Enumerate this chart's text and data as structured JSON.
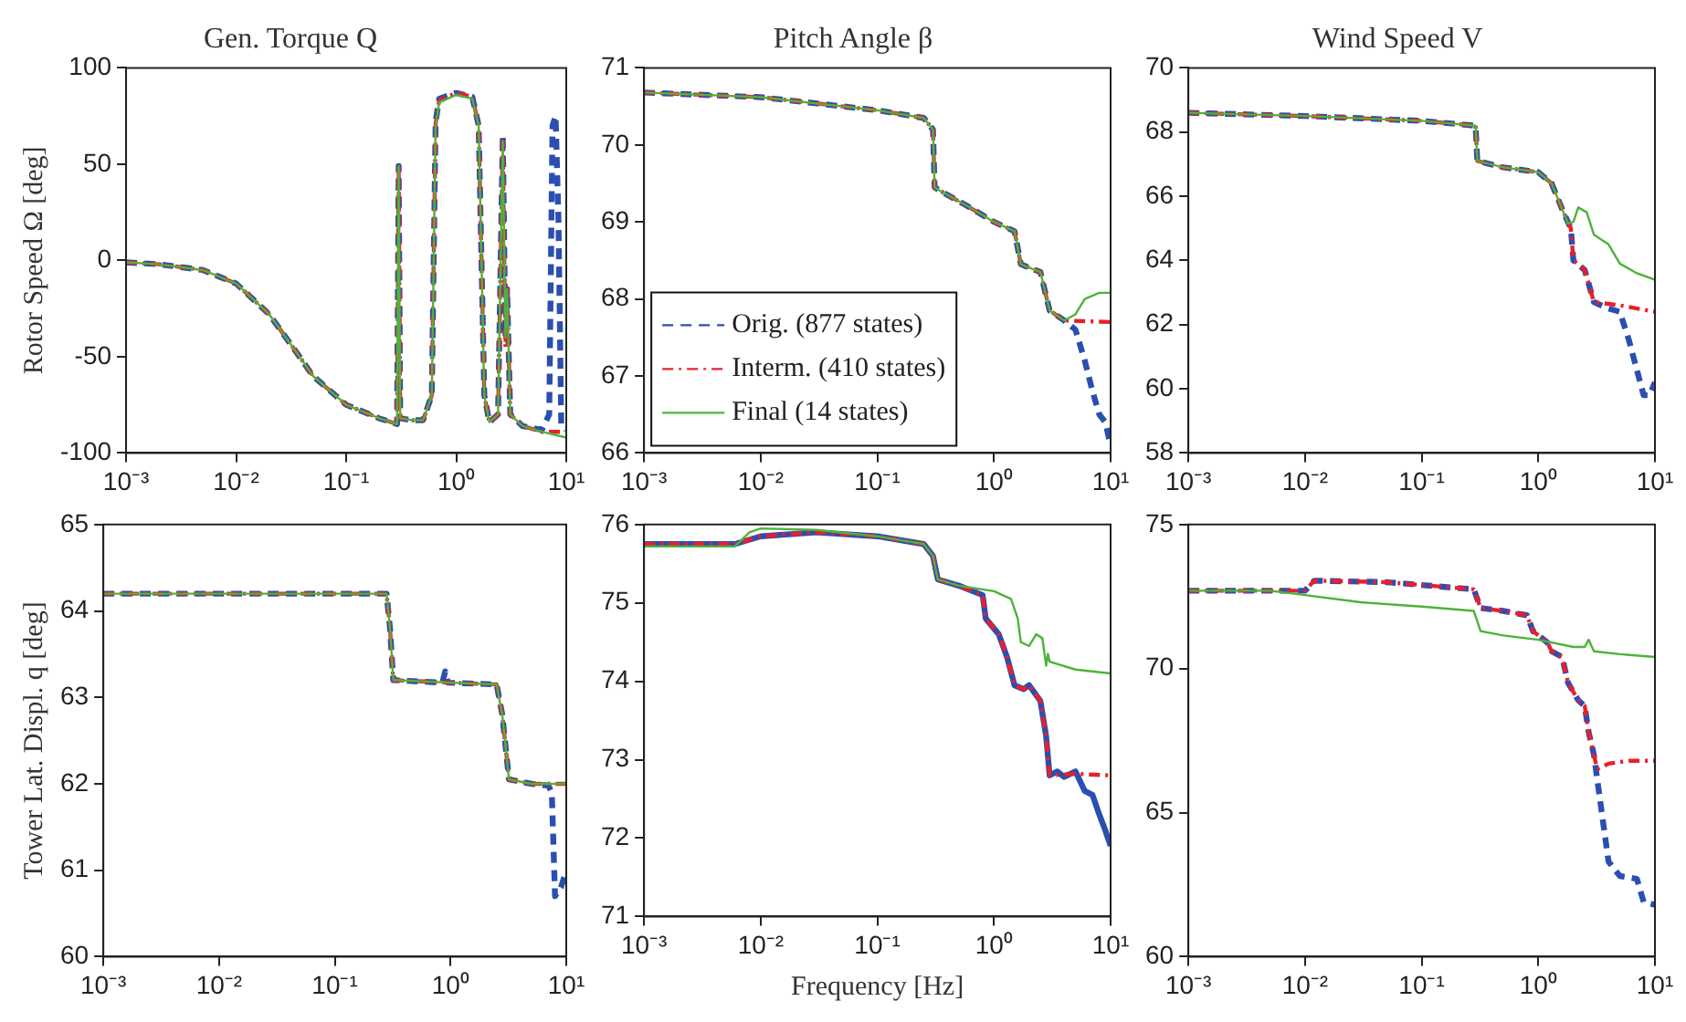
{
  "chart_data": [
    {
      "type": "line",
      "title": "Gen. Torque Q",
      "ylabel": "Rotor Speed Ω [deg]",
      "log": "x",
      "grid": false,
      "legend": false,
      "xlim": [
        0.001,
        10
      ],
      "xticks": [
        {
          "value": 0.001,
          "label": "10⁻³"
        },
        {
          "value": 0.01,
          "label": "10⁻²"
        },
        {
          "value": 0.1,
          "label": "10⁻¹"
        },
        {
          "value": 1,
          "label": "10⁰"
        },
        {
          "value": 10,
          "label": "10¹"
        }
      ],
      "ylim": [
        -100,
        100
      ],
      "yticks": [
        -100,
        -50,
        0,
        50,
        100
      ],
      "series": [
        {
          "color": "#2b4fb0",
          "line_style": "dashed",
          "x": [
            0.001,
            0.002,
            0.005,
            0.01,
            0.02,
            0.03,
            0.05,
            0.1,
            0.2,
            0.29,
            0.3,
            0.31,
            0.4,
            0.5,
            0.6,
            0.65,
            0.7,
            1,
            1.4,
            1.6,
            1.8,
            2,
            2.4,
            2.65,
            2.8,
            2.9,
            3.1,
            4,
            6,
            7,
            7.5,
            8,
            8.5,
            9,
            10
          ],
          "values": [
            -1,
            -2,
            -5,
            -12,
            -28,
            -42,
            -60,
            -75,
            -82,
            -85,
            49,
            -82,
            -83,
            -83,
            -70,
            72,
            84,
            87,
            85,
            70,
            -70,
            -84,
            -80,
            65,
            -40,
            -15,
            -80,
            -86,
            -88,
            -80,
            70,
            75,
            20,
            -85,
            -88
          ]
        },
        {
          "color": "#e8202a",
          "line_style": "dotted",
          "x": [
            0.001,
            0.002,
            0.005,
            0.01,
            0.02,
            0.03,
            0.05,
            0.1,
            0.2,
            0.29,
            0.3,
            0.31,
            0.4,
            0.5,
            0.6,
            0.65,
            0.7,
            1,
            1.4,
            1.6,
            1.8,
            2,
            2.4,
            2.65,
            2.8,
            2.9,
            3.1,
            4,
            6,
            10
          ],
          "values": [
            -1,
            -2,
            -5,
            -12,
            -28,
            -42,
            -60,
            -75,
            -82,
            -85,
            49,
            -82,
            -83,
            -83,
            -70,
            71,
            83,
            87,
            85,
            70,
            -70,
            -84,
            -80,
            62,
            -45,
            -15,
            -80,
            -86,
            -89,
            -89
          ]
        },
        {
          "color": "#4cb33a",
          "line_style": "solid",
          "x": [
            0.001,
            0.002,
            0.005,
            0.01,
            0.02,
            0.03,
            0.05,
            0.1,
            0.2,
            0.29,
            0.3,
            0.31,
            0.4,
            0.5,
            0.6,
            0.65,
            0.7,
            1,
            1.4,
            1.6,
            1.8,
            2,
            2.4,
            2.65,
            2.8,
            2.9,
            3.1,
            4,
            6,
            10
          ],
          "values": [
            -1,
            -2,
            -5,
            -12,
            -28,
            -42,
            -60,
            -75,
            -82,
            -85,
            49,
            -82,
            -83,
            -83,
            -70,
            70,
            82,
            86,
            84,
            70,
            -70,
            -84,
            -80,
            62,
            -40,
            -15,
            -80,
            -86,
            -89,
            -92
          ]
        }
      ]
    },
    {
      "type": "line",
      "title": "Pitch Angle β",
      "log": "x",
      "grid": false,
      "legend": "bottom left",
      "xlim": [
        0.001,
        10
      ],
      "xticks": [
        {
          "value": 0.001,
          "label": "10⁻³"
        },
        {
          "value": 0.01,
          "label": "10⁻²"
        },
        {
          "value": 0.1,
          "label": "10⁻¹"
        },
        {
          "value": 1,
          "label": "10⁰"
        },
        {
          "value": 10,
          "label": "10¹"
        }
      ],
      "ylim": [
        66,
        71
      ],
      "yticks": [
        66,
        67,
        68,
        69,
        70,
        71
      ],
      "series": [
        {
          "name": "Orig. (877 states)",
          "color": "#2b4fb0",
          "line_style": "dashed",
          "x": [
            0.001,
            0.01,
            0.1,
            0.25,
            0.3,
            0.31,
            0.35,
            0.6,
            1,
            1.5,
            1.7,
            2.5,
            3,
            4,
            5,
            6,
            7,
            8,
            9,
            10
          ],
          "values": [
            70.68,
            70.62,
            70.45,
            70.35,
            70.2,
            69.45,
            69.4,
            69.2,
            69.0,
            68.88,
            68.45,
            68.35,
            67.85,
            67.72,
            67.6,
            67.2,
            66.8,
            66.5,
            66.4,
            66.1
          ]
        },
        {
          "name": "Interm. (410 states)",
          "color": "#e8202a",
          "line_style": "dotted",
          "x": [
            0.001,
            0.01,
            0.1,
            0.25,
            0.3,
            0.31,
            0.35,
            0.6,
            1,
            1.5,
            1.7,
            2.5,
            3,
            4,
            10
          ],
          "values": [
            70.68,
            70.62,
            70.45,
            70.35,
            70.2,
            69.45,
            69.4,
            69.2,
            69.0,
            68.88,
            68.45,
            68.35,
            67.85,
            67.72,
            67.7
          ]
        },
        {
          "name": "Final (14 states)",
          "color": "#4cb33a",
          "line_style": "solid",
          "x": [
            0.001,
            0.01,
            0.1,
            0.25,
            0.3,
            0.31,
            0.35,
            0.6,
            1,
            1.5,
            1.7,
            2.5,
            3,
            4,
            5,
            6,
            8,
            10
          ],
          "values": [
            70.68,
            70.62,
            70.45,
            70.35,
            70.2,
            69.45,
            69.4,
            69.2,
            69.0,
            68.88,
            68.45,
            68.35,
            67.85,
            67.72,
            67.8,
            68.0,
            68.08,
            68.08
          ]
        }
      ]
    },
    {
      "type": "line",
      "title": "Wind Speed V",
      "log": "x",
      "grid": false,
      "legend": false,
      "xlim": [
        0.001,
        10
      ],
      "xticks": [
        {
          "value": 0.001,
          "label": "10⁻³"
        },
        {
          "value": 0.01,
          "label": "10⁻²"
        },
        {
          "value": 0.1,
          "label": "10⁻¹"
        },
        {
          "value": 1,
          "label": "10⁰"
        },
        {
          "value": 10,
          "label": "10¹"
        }
      ],
      "ylim": [
        58,
        70
      ],
      "yticks": [
        58,
        60,
        62,
        64,
        66,
        68,
        70
      ],
      "series": [
        {
          "color": "#2b4fb0",
          "line_style": "dashed",
          "x": [
            0.001,
            0.01,
            0.1,
            0.29,
            0.3,
            0.5,
            1,
            1.3,
            1.6,
            1.9,
            2,
            2.5,
            3,
            4,
            5,
            6,
            8,
            9,
            10
          ],
          "values": [
            68.6,
            68.5,
            68.35,
            68.2,
            67.1,
            66.9,
            66.75,
            66.4,
            65.6,
            65.0,
            64.0,
            63.7,
            62.7,
            62.5,
            62.4,
            61.5,
            59.8,
            59.8,
            60.2
          ]
        },
        {
          "color": "#e8202a",
          "line_style": "dotted",
          "x": [
            0.001,
            0.01,
            0.1,
            0.29,
            0.3,
            0.5,
            1,
            1.3,
            1.6,
            1.9,
            2,
            2.5,
            3,
            5,
            10
          ],
          "values": [
            68.6,
            68.5,
            68.35,
            68.2,
            67.1,
            66.9,
            66.75,
            66.4,
            65.6,
            65.0,
            64.0,
            63.7,
            62.7,
            62.6,
            62.4
          ]
        },
        {
          "color": "#4cb33a",
          "line_style": "solid",
          "x": [
            0.001,
            0.01,
            0.1,
            0.29,
            0.3,
            0.5,
            1,
            1.3,
            1.6,
            1.8,
            2,
            2.2,
            2.6,
            3,
            4,
            5,
            7,
            10
          ],
          "values": [
            68.6,
            68.5,
            68.35,
            68.2,
            67.1,
            66.9,
            66.75,
            66.4,
            65.6,
            65.15,
            65.2,
            65.65,
            65.5,
            64.8,
            64.5,
            63.9,
            63.6,
            63.4
          ]
        }
      ]
    },
    {
      "type": "line",
      "ylabel": "Tower Lat. Displ. q [deg]",
      "log": "x",
      "grid": false,
      "legend": false,
      "xlim": [
        0.001,
        10
      ],
      "xticks": [
        {
          "value": 0.001,
          "label": "10⁻³"
        },
        {
          "value": 0.01,
          "label": "10⁻²"
        },
        {
          "value": 0.1,
          "label": "10⁻¹"
        },
        {
          "value": 1,
          "label": "10⁰"
        },
        {
          "value": 10,
          "label": "10¹"
        }
      ],
      "ylim": [
        60,
        65
      ],
      "yticks": [
        60,
        61,
        62,
        63,
        64,
        65
      ],
      "series": [
        {
          "color": "#2b4fb0",
          "line_style": "dashed",
          "x": [
            0.001,
            0.28,
            0.3,
            0.32,
            0.85,
            0.9,
            0.95,
            2.5,
            2.8,
            3.2,
            5,
            7,
            7.5,
            8,
            9,
            10
          ],
          "values": [
            64.2,
            64.2,
            63.8,
            63.2,
            63.17,
            63.3,
            63.17,
            63.15,
            62.8,
            62.05,
            62.0,
            61.98,
            61.9,
            60.7,
            60.8,
            61.0
          ]
        },
        {
          "color": "#e8202a",
          "line_style": "dotted",
          "x": [
            0.001,
            0.28,
            0.3,
            0.32,
            1,
            2.5,
            2.8,
            3.2,
            5,
            10
          ],
          "values": [
            64.2,
            64.2,
            63.8,
            63.2,
            63.17,
            63.15,
            62.8,
            62.05,
            62.0,
            62.0
          ]
        },
        {
          "color": "#4cb33a",
          "line_style": "solid",
          "x": [
            0.001,
            0.28,
            0.3,
            0.32,
            1,
            2.5,
            2.8,
            3.2,
            5,
            10
          ],
          "values": [
            64.2,
            64.2,
            63.8,
            63.2,
            63.17,
            63.15,
            62.8,
            62.05,
            62.0,
            62.0
          ]
        }
      ]
    },
    {
      "type": "line",
      "xlabel": "Frequency [Hz]",
      "log": "x",
      "grid": false,
      "legend": false,
      "xlim": [
        0.001,
        10
      ],
      "xticks": [
        {
          "value": 0.001,
          "label": "10⁻³"
        },
        {
          "value": 0.01,
          "label": "10⁻²"
        },
        {
          "value": 0.1,
          "label": "10⁻¹"
        },
        {
          "value": 1,
          "label": "10⁰"
        },
        {
          "value": 10,
          "label": "10¹"
        }
      ],
      "ylim": [
        71,
        76
      ],
      "yticks": [
        71,
        72,
        73,
        74,
        75,
        76
      ],
      "series": [
        {
          "color": "#2b4fb0",
          "line_style": "solid",
          "x": [
            0.001,
            0.006,
            0.01,
            0.03,
            0.1,
            0.25,
            0.3,
            0.33,
            0.5,
            0.8,
            0.85,
            1.1,
            1.3,
            1.5,
            1.8,
            2,
            2.5,
            2.8,
            3,
            3.5,
            4,
            5,
            6,
            7,
            8,
            9,
            10
          ],
          "values": [
            75.75,
            75.75,
            75.85,
            75.9,
            75.85,
            75.75,
            75.6,
            75.3,
            75.22,
            75.1,
            74.8,
            74.6,
            74.3,
            73.95,
            73.9,
            73.95,
            73.75,
            73.3,
            72.8,
            72.85,
            72.78,
            72.85,
            72.6,
            72.55,
            72.3,
            72.1,
            71.9
          ]
        },
        {
          "color": "#e8202a",
          "line_style": "dotted",
          "x": [
            0.001,
            0.006,
            0.01,
            0.03,
            0.1,
            0.25,
            0.3,
            0.33,
            0.5,
            0.8,
            0.85,
            1.1,
            1.3,
            1.5,
            1.8,
            2,
            2.5,
            2.8,
            3,
            5,
            10
          ],
          "values": [
            75.75,
            75.75,
            75.85,
            75.9,
            75.85,
            75.75,
            75.6,
            75.3,
            75.22,
            75.1,
            74.8,
            74.6,
            74.3,
            73.95,
            73.9,
            73.95,
            73.75,
            73.3,
            72.8,
            72.82,
            72.8
          ]
        },
        {
          "color": "#4cb33a",
          "line_style": "solid",
          "x": [
            0.001,
            0.006,
            0.008,
            0.01,
            0.03,
            0.1,
            0.25,
            0.3,
            0.33,
            0.5,
            1,
            1.4,
            1.6,
            1.7,
            2,
            2.3,
            2.6,
            2.8,
            2.9,
            3,
            5,
            10
          ],
          "values": [
            75.72,
            75.72,
            75.9,
            75.95,
            75.93,
            75.85,
            75.75,
            75.6,
            75.3,
            75.22,
            75.15,
            75.05,
            74.8,
            74.5,
            74.45,
            74.6,
            74.55,
            74.2,
            74.35,
            74.25,
            74.15,
            74.1
          ]
        }
      ]
    },
    {
      "type": "line",
      "log": "x",
      "grid": false,
      "legend": false,
      "xlim": [
        0.001,
        10
      ],
      "xticks": [
        {
          "value": 0.001,
          "label": "10⁻³"
        },
        {
          "value": 0.01,
          "label": "10⁻²"
        },
        {
          "value": 0.1,
          "label": "10⁻¹"
        },
        {
          "value": 1,
          "label": "10⁰"
        },
        {
          "value": 10,
          "label": "10¹"
        }
      ],
      "ylim": [
        60,
        75
      ],
      "yticks": [
        60,
        65,
        70,
        75
      ],
      "series": [
        {
          "color": "#2b4fb0",
          "line_style": "dashed",
          "x": [
            0.001,
            0.01,
            0.012,
            0.05,
            0.1,
            0.28,
            0.32,
            0.5,
            0.8,
            0.9,
            1.2,
            1.3,
            1.6,
            1.8,
            2.2,
            2.5,
            2.7,
            3,
            3.5,
            4,
            5,
            7,
            8,
            10
          ],
          "values": [
            72.7,
            72.7,
            73.05,
            73.0,
            72.9,
            72.75,
            72.1,
            72.0,
            71.85,
            71.3,
            70.9,
            70.6,
            70.4,
            69.5,
            68.9,
            68.7,
            67.8,
            67.0,
            65.0,
            63.3,
            62.8,
            62.7,
            61.9,
            61.8
          ]
        },
        {
          "color": "#e8202a",
          "line_style": "dotted",
          "x": [
            0.001,
            0.01,
            0.012,
            0.05,
            0.1,
            0.28,
            0.32,
            0.5,
            0.8,
            0.9,
            1.2,
            1.3,
            1.6,
            1.8,
            2.2,
            2.5,
            2.7,
            3.2,
            4,
            6,
            10
          ],
          "values": [
            72.7,
            72.7,
            73.05,
            73.0,
            72.9,
            72.75,
            72.1,
            72.0,
            71.85,
            71.3,
            70.9,
            70.6,
            70.4,
            69.5,
            68.9,
            68.7,
            67.8,
            66.5,
            66.7,
            66.8,
            66.8
          ]
        },
        {
          "color": "#4cb33a",
          "line_style": "solid",
          "x": [
            0.001,
            0.005,
            0.01,
            0.03,
            0.1,
            0.28,
            0.32,
            0.5,
            1,
            2,
            2.5,
            2.7,
            3,
            5,
            10
          ],
          "values": [
            72.7,
            72.7,
            72.55,
            72.3,
            72.15,
            72.0,
            71.3,
            71.15,
            71.0,
            70.75,
            70.75,
            71.0,
            70.6,
            70.5,
            70.4
          ]
        }
      ]
    }
  ]
}
